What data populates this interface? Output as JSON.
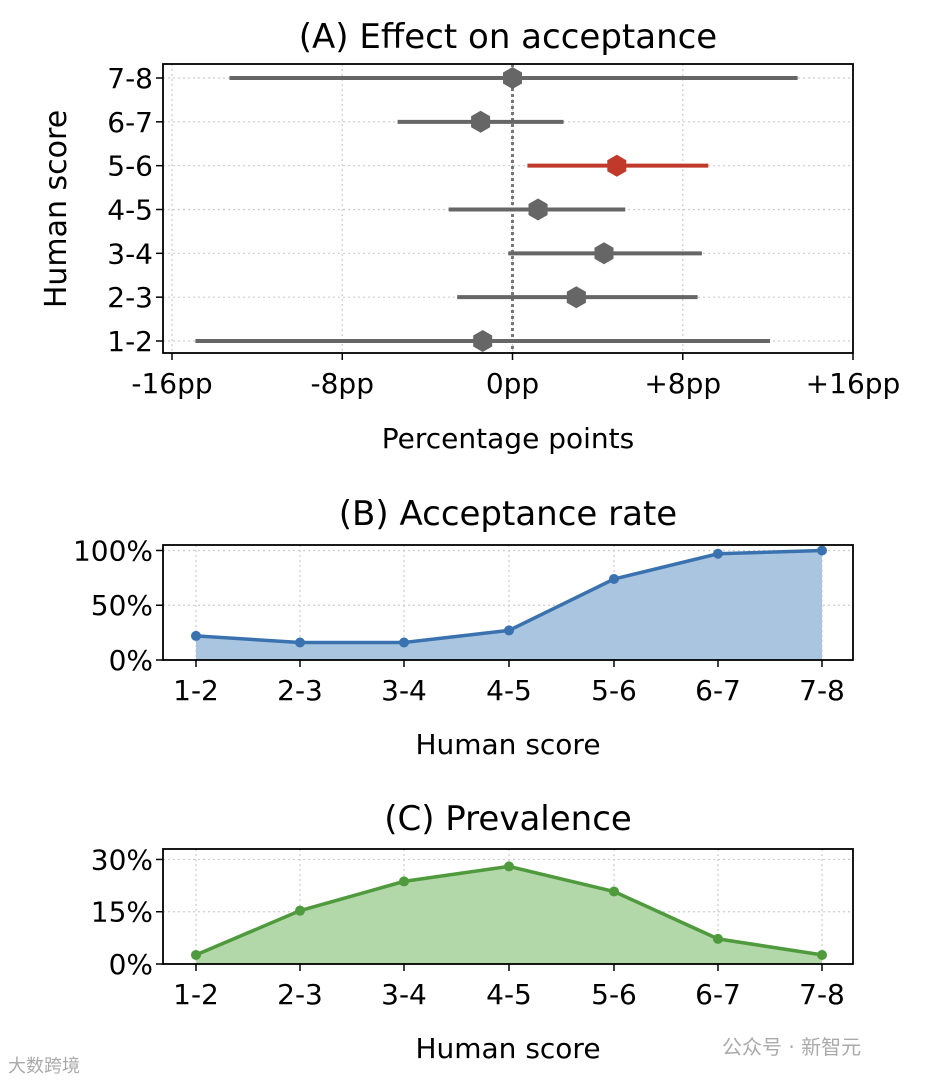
{
  "chart_data": [
    {
      "type": "forest",
      "title": "(A) Effect on acceptance",
      "xlabel": "Percentage points",
      "ylabel": "Human score",
      "xlim": [
        -16,
        16
      ],
      "xticks": [
        -16,
        -8,
        0,
        8,
        16
      ],
      "xtick_labels": [
        "-16pp",
        "-8pp",
        "0pp",
        "+8pp",
        "+16pp"
      ],
      "grid": true,
      "categories": [
        "1-2",
        "2-3",
        "3-4",
        "4-5",
        "5-6",
        "6-7",
        "7-8"
      ],
      "estimates": [
        -1.4,
        3.0,
        4.3,
        1.2,
        4.9,
        -1.5,
        0.0
      ],
      "ci_low": [
        -14.9,
        -2.6,
        -0.2,
        -3.0,
        0.7,
        -5.4,
        -13.3
      ],
      "ci_high": [
        12.1,
        8.7,
        8.9,
        5.3,
        9.2,
        2.4,
        13.4
      ],
      "highlight": "5-6",
      "highlight_color": "#c0392b",
      "base_color": "#666666"
    },
    {
      "type": "area",
      "title": "(B) Acceptance rate",
      "xlabel": "Human score",
      "ylabel": "",
      "categories": [
        "1-2",
        "2-3",
        "3-4",
        "4-5",
        "5-6",
        "6-7",
        "7-8"
      ],
      "values": [
        22,
        16,
        16,
        27,
        74,
        97,
        100
      ],
      "ylim": [
        0,
        105
      ],
      "yticks": [
        0,
        50,
        100
      ],
      "ytick_labels": [
        "0%",
        "50%",
        "100%"
      ],
      "color": "#3a72b0",
      "fill": "#a9c5e0",
      "grid": true
    },
    {
      "type": "area",
      "title": "(C) Prevalence",
      "xlabel": "Human score",
      "ylabel": "",
      "categories": [
        "1-2",
        "2-3",
        "3-4",
        "4-5",
        "5-6",
        "6-7",
        "7-8"
      ],
      "values": [
        2.6,
        15.3,
        23.7,
        28.0,
        20.8,
        7.2,
        2.6
      ],
      "ylim": [
        0,
        33
      ],
      "yticks": [
        0,
        15,
        30
      ],
      "ytick_labels": [
        "0%",
        "15%",
        "30%"
      ],
      "color": "#4e9a3c",
      "fill": "#b2d8aa",
      "grid": true
    }
  ],
  "watermarks": {
    "left": "大数跨境",
    "right": "公众号 · 新智元"
  }
}
